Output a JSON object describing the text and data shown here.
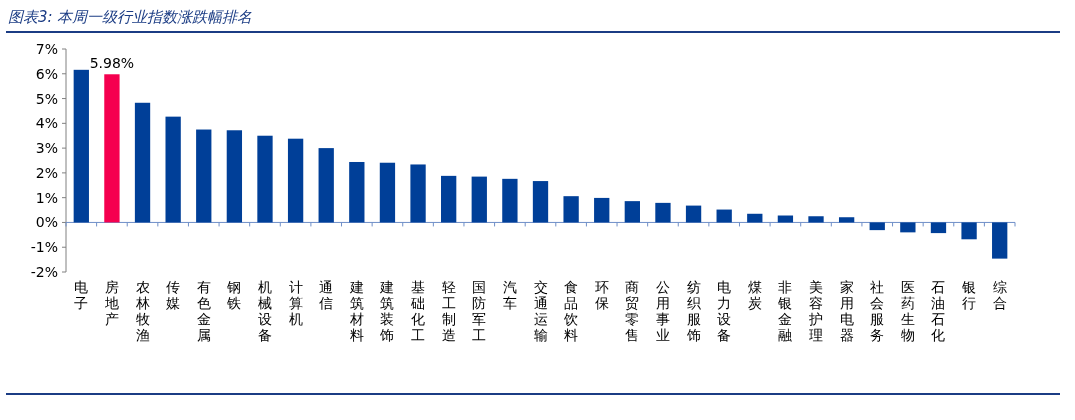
{
  "chart_data": {
    "type": "bar",
    "title": "图表3: 本周一级行业指数涨跌幅排名",
    "categories": [
      "电子",
      "房地产",
      "农林牧渔",
      "传媒",
      "有色金属",
      "钢铁",
      "机械设备",
      "计算机",
      "通信",
      "建筑材料",
      "建筑装饰",
      "基础化工",
      "轻工制造",
      "国防军工",
      "汽车",
      "交通运输",
      "食品饮料",
      "环保",
      "商贸零售",
      "公用事业",
      "纺织服饰",
      "电力设备",
      "煤炭",
      "非银金融",
      "美容护理",
      "家用电器",
      "社会服务",
      "医药生物",
      "石油石化",
      "银行",
      "综合"
    ],
    "values": [
      6.16,
      5.98,
      4.83,
      4.27,
      3.75,
      3.72,
      3.5,
      3.38,
      3.0,
      2.44,
      2.41,
      2.34,
      1.88,
      1.85,
      1.76,
      1.67,
      1.06,
      0.99,
      0.86,
      0.79,
      0.68,
      0.52,
      0.35,
      0.28,
      0.25,
      0.21,
      -0.31,
      -0.4,
      -0.43,
      -0.68,
      -1.46
    ],
    "colors": [
      "#003f98",
      "#f5004f",
      "#003f98",
      "#003f98",
      "#003f98",
      "#003f98",
      "#003f98",
      "#003f98",
      "#003f98",
      "#003f98",
      "#003f98",
      "#003f98",
      "#003f98",
      "#003f98",
      "#003f98",
      "#003f98",
      "#003f98",
      "#003f98",
      "#003f98",
      "#003f98",
      "#003f98",
      "#003f98",
      "#003f98",
      "#003f98",
      "#003f98",
      "#003f98",
      "#003f98",
      "#003f98",
      "#003f98",
      "#003f98",
      "#003f98"
    ],
    "value_labels": [
      null,
      "5.98%",
      null,
      null,
      null,
      null,
      null,
      null,
      null,
      null,
      null,
      null,
      null,
      null,
      null,
      null,
      null,
      null,
      null,
      null,
      null,
      null,
      null,
      null,
      null,
      null,
      null,
      null,
      null,
      null,
      null
    ],
    "ylim": [
      -2,
      7
    ],
    "yticks": [
      {
        "value": -2,
        "label": "-2%"
      },
      {
        "value": -1,
        "label": "-1%"
      },
      {
        "value": 0,
        "label": "0%"
      },
      {
        "value": 1,
        "label": "1%"
      },
      {
        "value": 2,
        "label": "2%"
      },
      {
        "value": 3,
        "label": "3%"
      },
      {
        "value": 4,
        "label": "4%"
      },
      {
        "value": 5,
        "label": "5%"
      },
      {
        "value": 6,
        "label": "6%"
      },
      {
        "value": 7,
        "label": "7%"
      }
    ],
    "ref_lines": [
      {
        "axis": "y",
        "value": 0,
        "color": "#6f8fc8"
      }
    ],
    "grid": false
  }
}
